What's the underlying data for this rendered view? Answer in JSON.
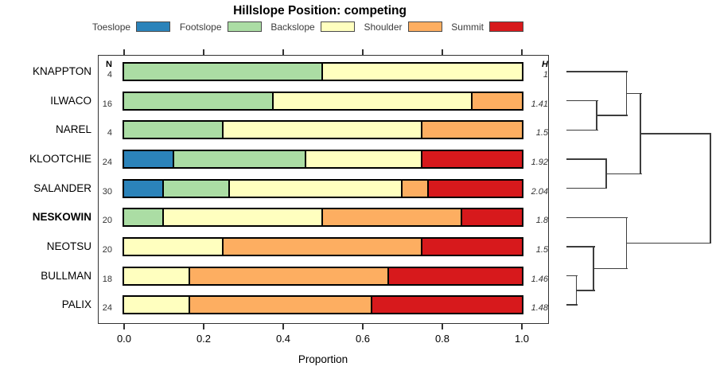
{
  "chart_data": {
    "type": "bar",
    "orientation": "horizontal_stacked",
    "title": "Hillslope Position: competing",
    "xlabel": "Proportion",
    "xlim": [
      0,
      1
    ],
    "x_ticks": [
      0,
      0.2,
      0.4,
      0.6,
      0.8,
      1
    ],
    "x_tick_labels": [
      "0.0",
      "0.2",
      "0.4",
      "0.6",
      "0.8",
      "1.0"
    ],
    "legend_position": "top",
    "grid": false,
    "categories": [
      "Toeslope",
      "Footslope",
      "Backslope",
      "Shoulder",
      "Summit"
    ],
    "colors": {
      "Toeslope": "#2B83BA",
      "Footslope": "#ABDDA4",
      "Backslope": "#FFFFBF",
      "Shoulder": "#FDAE61",
      "Summit": "#D7191C"
    },
    "n_header": "N",
    "h_header": "H",
    "rows": [
      {
        "label": "KNAPPTON",
        "n": 4,
        "h": "1",
        "bold": false,
        "segments": [
          {
            "category": "Footslope",
            "value": 0.5
          },
          {
            "category": "Backslope",
            "value": 0.5
          }
        ]
      },
      {
        "label": "ILWACO",
        "n": 16,
        "h": "1.41",
        "bold": false,
        "segments": [
          {
            "category": "Footslope",
            "value": 0.375
          },
          {
            "category": "Backslope",
            "value": 0.5
          },
          {
            "category": "Shoulder",
            "value": 0.125
          }
        ]
      },
      {
        "label": "NAREL",
        "n": 4,
        "h": "1.5",
        "bold": false,
        "segments": [
          {
            "category": "Footslope",
            "value": 0.25
          },
          {
            "category": "Backslope",
            "value": 0.5
          },
          {
            "category": "Shoulder",
            "value": 0.25
          }
        ]
      },
      {
        "label": "KLOOTCHIE",
        "n": 24,
        "h": "1.92",
        "bold": false,
        "segments": [
          {
            "category": "Toeslope",
            "value": 0.125
          },
          {
            "category": "Footslope",
            "value": 0.3333
          },
          {
            "category": "Backslope",
            "value": 0.2917
          },
          {
            "category": "Summit",
            "value": 0.25
          }
        ]
      },
      {
        "label": "SALANDER",
        "n": 30,
        "h": "2.04",
        "bold": false,
        "segments": [
          {
            "category": "Toeslope",
            "value": 0.1
          },
          {
            "category": "Footslope",
            "value": 0.1667
          },
          {
            "category": "Backslope",
            "value": 0.4333
          },
          {
            "category": "Shoulder",
            "value": 0.0667
          },
          {
            "category": "Summit",
            "value": 0.2333
          }
        ]
      },
      {
        "label": "NESKOWIN",
        "n": 20,
        "h": "1.8",
        "bold": true,
        "segments": [
          {
            "category": "Footslope",
            "value": 0.1
          },
          {
            "category": "Backslope",
            "value": 0.4
          },
          {
            "category": "Shoulder",
            "value": 0.35
          },
          {
            "category": "Summit",
            "value": 0.15
          }
        ]
      },
      {
        "label": "NEOTSU",
        "n": 20,
        "h": "1.5",
        "bold": false,
        "segments": [
          {
            "category": "Backslope",
            "value": 0.25
          },
          {
            "category": "Shoulder",
            "value": 0.5
          },
          {
            "category": "Summit",
            "value": 0.25
          }
        ]
      },
      {
        "label": "BULLMAN",
        "n": 18,
        "h": "1.46",
        "bold": false,
        "segments": [
          {
            "category": "Backslope",
            "value": 0.1667
          },
          {
            "category": "Shoulder",
            "value": 0.5
          },
          {
            "category": "Summit",
            "value": 0.3333
          }
        ]
      },
      {
        "label": "PALIX",
        "n": 24,
        "h": "1.48",
        "bold": false,
        "segments": [
          {
            "category": "Backslope",
            "value": 0.1667
          },
          {
            "category": "Shoulder",
            "value": 0.4583
          },
          {
            "category": "Summit",
            "value": 0.375
          }
        ]
      }
    ],
    "dendrogram": {
      "x": 1,
      "children": [
        {
          "x": 0.514,
          "children": [
            {
              "x": 0.418,
              "children": [
                {
                  "leaf": 0
                },
                {
                  "x": 0.21,
                  "children": [
                    {
                      "leaf": 1
                    },
                    {
                      "leaf": 2
                    }
                  ]
                }
              ]
            },
            {
              "x": 0.275,
              "children": [
                {
                  "leaf": 3
                },
                {
                  "leaf": 4
                }
              ]
            }
          ]
        },
        {
          "x": 0.418,
          "children": [
            {
              "leaf": 5
            },
            {
              "x": 0.188,
              "children": [
                {
                  "leaf": 6
                },
                {
                  "x": 0.068,
                  "children": [
                    {
                      "leaf": 7
                    },
                    {
                      "leaf": 8
                    }
                  ]
                }
              ]
            }
          ]
        }
      ]
    }
  }
}
